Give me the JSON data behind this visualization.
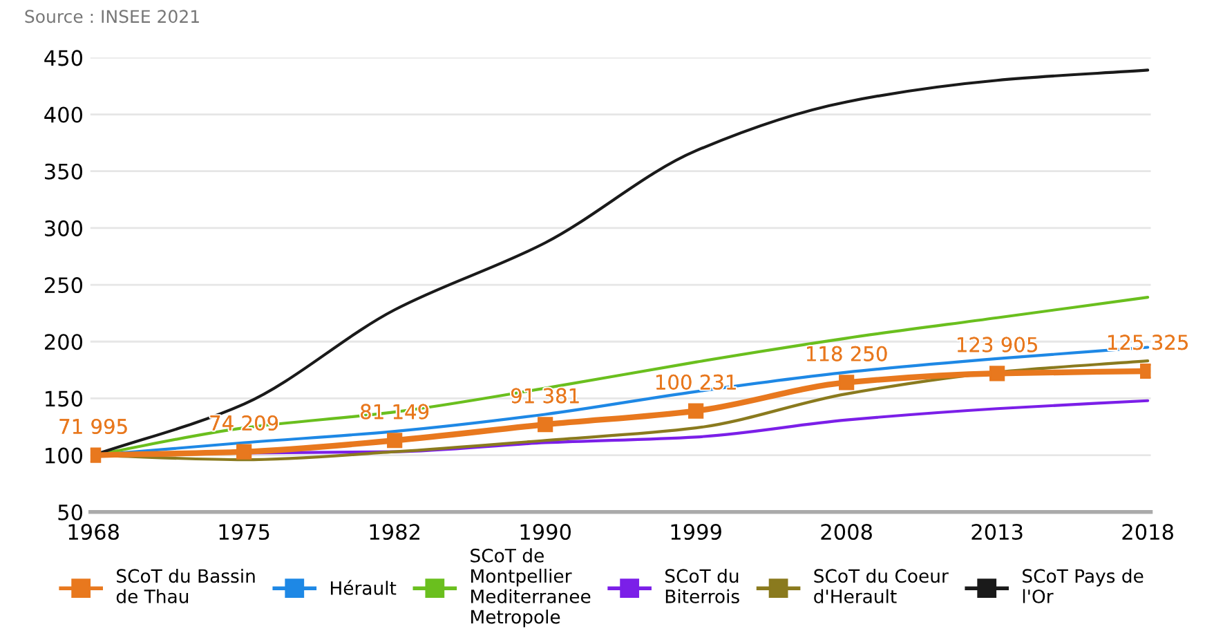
{
  "chart_data": {
    "type": "line",
    "categories": [
      "1968",
      "1975",
      "1982",
      "1990",
      "1999",
      "2008",
      "2013",
      "2018"
    ],
    "series": [
      {
        "name": "SCoT du Bassin de Thau",
        "color": "#e8781e",
        "marker": "square",
        "values": [
          100,
          103,
          113,
          127,
          139,
          164,
          172,
          174
        ]
      },
      {
        "name": "Hérault",
        "color": "#1e88e5",
        "values": [
          100,
          111,
          121,
          136,
          156,
          173,
          185,
          195
        ]
      },
      {
        "name": "SCoT de Montpellier Mediterranee Metropole",
        "color": "#6abf1e",
        "values": [
          100,
          124,
          138,
          159,
          182,
          203,
          221,
          239
        ]
      },
      {
        "name": "SCoT du Biterrois",
        "color": "#7b1fe8",
        "values": [
          100,
          102,
          103,
          111,
          116,
          131,
          141,
          148
        ]
      },
      {
        "name": "SCoT du Coeur d'Herault",
        "color": "#8a7a1e",
        "values": [
          100,
          96,
          103,
          113,
          124,
          154,
          173,
          183
        ]
      },
      {
        "name": "SCoT Pays de l'Or",
        "color": "#1a1a1a",
        "values": [
          100,
          145,
          228,
          287,
          368,
          411,
          430,
          439
        ]
      }
    ],
    "ylim": [
      50,
      450
    ],
    "yticks": [
      50,
      100,
      150,
      200,
      250,
      300,
      350,
      400,
      450
    ],
    "grid": "y",
    "legend": "bottom",
    "line_style": "solid",
    "annotations": [
      "Source : INSEE 2021",
      {
        "text": "71 995",
        "x": "1968",
        "y": 100
      },
      {
        "text": "74 209",
        "x": "1975",
        "y": 103
      },
      {
        "text": "81 149",
        "x": "1982",
        "y": 113
      },
      {
        "text": "91 381",
        "x": "1990",
        "y": 127
      },
      {
        "text": "100 231",
        "x": "1999",
        "y": 139
      },
      {
        "text": "118 250",
        "x": "2008",
        "y": 164
      },
      {
        "text": "123 905",
        "x": "2013",
        "y": 172
      },
      {
        "text": "125 325",
        "x": "2018",
        "y": 174
      }
    ]
  }
}
